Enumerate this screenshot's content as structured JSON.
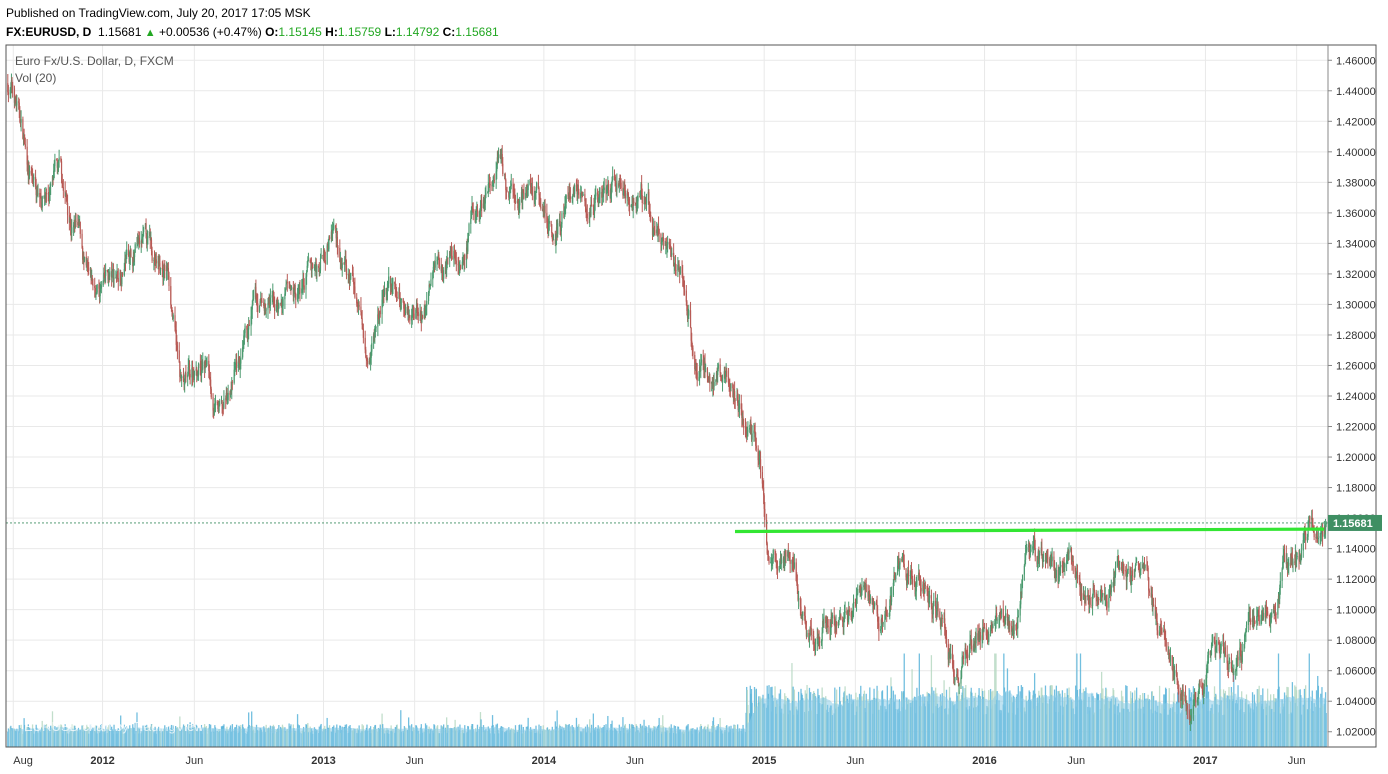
{
  "header": {
    "line1": "Published on TradingView.com, July 20, 2017 17:05 MSK",
    "symbol": "FX:EURUSD, D",
    "price": "1.15681",
    "change_arrow": "▲",
    "change": "+0.00536 (+0.47%)",
    "o_label": "O:",
    "o_value": "1.15145",
    "h_label": "H:",
    "h_value": "1.15759",
    "l_label": "L:",
    "l_value": "1.14792",
    "c_label": "C:",
    "c_value": "1.15681"
  },
  "legend": {
    "title": "Euro Fx/U.S. Dollar, D, FXCM",
    "indicator": "Vol (20)"
  },
  "watermark": "EURUSD chart by TradingView",
  "last_price_label": "1.15681",
  "colors": {
    "up": "#4a9a6e",
    "down": "#b85a55",
    "volume": "#5ab4da",
    "volume_ma": "#8ccce8",
    "resistance": "#33e633",
    "price_badge": "#3f8f63",
    "grid": "#e9e9e9"
  },
  "chart_data": {
    "type": "candlestick",
    "title": "Euro Fx/U.S. Dollar, D, FXCM",
    "y_axis": {
      "ylim": [
        1.01,
        1.47
      ],
      "ticks": [
        "1.46000",
        "1.44000",
        "1.42000",
        "1.40000",
        "1.38000",
        "1.36000",
        "1.34000",
        "1.32000",
        "1.30000",
        "1.28000",
        "1.26000",
        "1.24000",
        "1.22000",
        "1.20000",
        "1.18000",
        "1.16000",
        "1.14000",
        "1.12000",
        "1.10000",
        "1.08000",
        "1.06000",
        "1.04000",
        "1.02000"
      ]
    },
    "x_axis": {
      "ticks": [
        "Aug",
        "2012",
        "Jun",
        "2013",
        "Jun",
        "2014",
        "Jun",
        "2015",
        "Jun",
        "2016",
        "Jun",
        "2017",
        "Jun"
      ],
      "range": [
        "2011-08",
        "2017-07"
      ]
    },
    "grid": true,
    "price_path": {
      "unit": "month",
      "months": [
        "2011-08",
        "2011-09",
        "2011-10",
        "2011-11",
        "2011-12",
        "2012-01",
        "2012-02",
        "2012-03",
        "2012-04",
        "2012-05",
        "2012-06",
        "2012-07",
        "2012-08",
        "2012-09",
        "2012-10",
        "2012-11",
        "2012-12",
        "2013-01",
        "2013-02",
        "2013-03",
        "2013-04",
        "2013-05",
        "2013-06",
        "2013-07",
        "2013-08",
        "2013-09",
        "2013-10",
        "2013-11",
        "2013-12",
        "2014-01",
        "2014-02",
        "2014-03",
        "2014-04",
        "2014-05",
        "2014-06",
        "2014-07",
        "2014-08",
        "2014-09",
        "2014-10",
        "2014-11",
        "2014-12",
        "2015-01",
        "2015-02",
        "2015-03",
        "2015-04",
        "2015-05",
        "2015-06",
        "2015-07",
        "2015-08",
        "2015-09",
        "2015-10",
        "2015-11",
        "2015-12",
        "2016-01",
        "2016-02",
        "2016-03",
        "2016-04",
        "2016-05",
        "2016-06",
        "2016-07",
        "2016-08",
        "2016-09",
        "2016-10",
        "2016-11",
        "2016-12",
        "2017-01",
        "2017-02",
        "2017-03",
        "2017-04",
        "2017-05",
        "2017-06",
        "2017-07"
      ],
      "close": [
        1.445,
        1.375,
        1.38,
        1.35,
        1.3,
        1.31,
        1.335,
        1.33,
        1.32,
        1.24,
        1.265,
        1.225,
        1.255,
        1.29,
        1.295,
        1.3,
        1.32,
        1.355,
        1.31,
        1.28,
        1.31,
        1.3,
        1.305,
        1.33,
        1.335,
        1.355,
        1.38,
        1.36,
        1.375,
        1.355,
        1.375,
        1.38,
        1.385,
        1.365,
        1.365,
        1.34,
        1.32,
        1.26,
        1.26,
        1.245,
        1.21,
        1.13,
        1.135,
        1.08,
        1.1,
        1.1,
        1.12,
        1.1,
        1.13,
        1.12,
        1.1,
        1.065,
        1.09,
        1.085,
        1.095,
        1.14,
        1.135,
        1.115,
        1.11,
        1.115,
        1.12,
        1.125,
        1.09,
        1.06,
        1.045,
        1.07,
        1.06,
        1.08,
        1.09,
        1.12,
        1.14,
        1.157
      ]
    },
    "series": [
      {
        "name": "EURUSD",
        "last": 1.15681
      }
    ],
    "resistance_level": 1.152,
    "last_price": 1.15681,
    "volume_ma_period": 20
  }
}
